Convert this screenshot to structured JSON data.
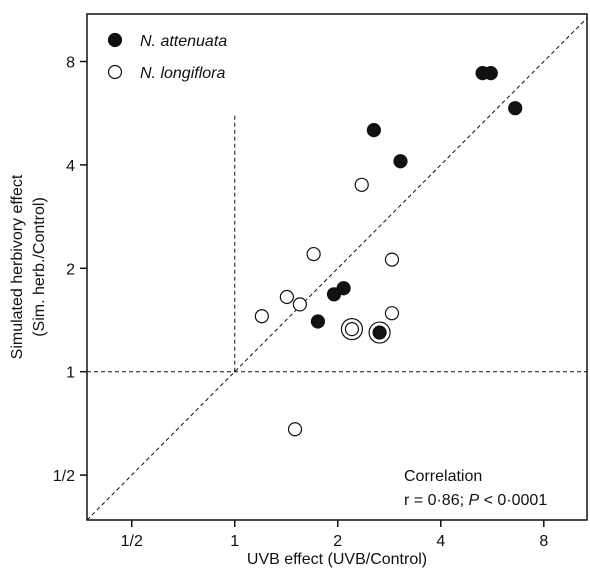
{
  "chart_data": {
    "type": "scatter",
    "xlabel": "UVB effect (UVB/Control)",
    "ylabel": "Simulated herbivory effect",
    "ylabel_line2": "(Sim. herb./Control)",
    "x_scale": "log2",
    "y_scale": "log2",
    "xlim": [
      0.37,
      10.7
    ],
    "ylim": [
      0.37,
      11.0
    ],
    "x_ticks": [
      0.5,
      1,
      2,
      4,
      8
    ],
    "x_tick_labels": [
      "1/2",
      "1",
      "2",
      "4",
      "8"
    ],
    "y_ticks": [
      0.5,
      1,
      2,
      4,
      8
    ],
    "y_tick_labels": [
      "1/2",
      "1",
      "2",
      "4",
      "8"
    ],
    "grid": false,
    "reference_lines": [
      "y = x (1:1 line, dashed)",
      "x = 1 (dashed)",
      "y = 1 (dashed)"
    ],
    "legend_position": "top-left",
    "series": [
      {
        "name": "N. attenuata",
        "marker": "filled-circle",
        "points": [
          {
            "x": 2.55,
            "y": 5.05
          },
          {
            "x": 3.05,
            "y": 4.1
          },
          {
            "x": 5.3,
            "y": 7.4
          },
          {
            "x": 5.6,
            "y": 7.4
          },
          {
            "x": 6.6,
            "y": 5.85
          },
          {
            "x": 2.08,
            "y": 1.75
          },
          {
            "x": 1.95,
            "y": 1.68
          },
          {
            "x": 1.75,
            "y": 1.4
          },
          {
            "x": 2.65,
            "y": 1.3
          }
        ]
      },
      {
        "name": "N. longiflora",
        "marker": "open-circle",
        "points": [
          {
            "x": 2.35,
            "y": 3.5
          },
          {
            "x": 1.7,
            "y": 2.2
          },
          {
            "x": 2.88,
            "y": 2.12
          },
          {
            "x": 1.42,
            "y": 1.65
          },
          {
            "x": 1.55,
            "y": 1.57
          },
          {
            "x": 1.2,
            "y": 1.45
          },
          {
            "x": 2.88,
            "y": 1.48
          },
          {
            "x": 2.2,
            "y": 1.33
          },
          {
            "x": 1.5,
            "y": 0.68
          }
        ]
      }
    ],
    "circled_points": [
      {
        "x": 2.2,
        "y": 1.33
      },
      {
        "x": 2.65,
        "y": 1.3
      }
    ],
    "annotation": {
      "line1": "Correlation",
      "line2_prefix": "r = 0·86; ",
      "line2_p": "P",
      "line2_suffix": " < 0·0001"
    }
  }
}
